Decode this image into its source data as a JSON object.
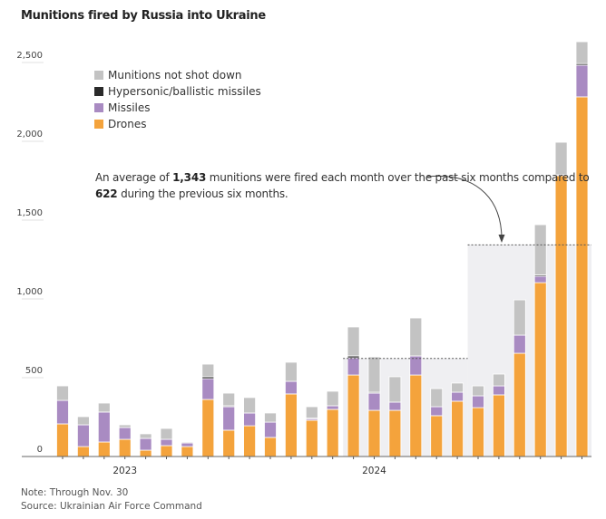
{
  "chart_data": {
    "type": "bar",
    "stacked": true,
    "title": "Munitions fired by Russia into Ukraine",
    "categories": [
      "2022-10",
      "2022-11",
      "2022-12",
      "2023-01",
      "2023-02",
      "2023-03",
      "2023-04",
      "2023-05",
      "2023-06",
      "2023-07",
      "2023-08",
      "2023-09",
      "2023-10",
      "2023-11",
      "2023-12",
      "2024-01",
      "2024-02",
      "2024-03",
      "2024-04",
      "2024-05",
      "2024-06",
      "2024-07",
      "2024-08",
      "2024-09",
      "2024-10",
      "2024-11"
    ],
    "x_tick_labels": [
      {
        "label": "2023",
        "category": "2023-01"
      },
      {
        "label": "2024",
        "category": "2024-01"
      }
    ],
    "ylim": [
      0,
      2600
    ],
    "y_ticks": [
      {
        "value": 0,
        "label": "0"
      },
      {
        "value": 500,
        "label": "500"
      },
      {
        "value": 1000,
        "label": "1,000"
      },
      {
        "value": 1500,
        "label": "1,500"
      },
      {
        "value": 2000,
        "label": "2,000"
      },
      {
        "value": 2500,
        "label": "2,500"
      }
    ],
    "grid": false,
    "legend_placement": "top-left",
    "series": [
      {
        "name": "Drones",
        "color": "#f4a33c",
        "values": [
          207,
          63,
          92,
          109,
          40,
          69,
          63,
          362,
          167,
          195,
          121,
          397,
          230,
          299,
          517,
          293,
          293,
          517,
          259,
          351,
          310,
          391,
          655,
          1103,
          1782,
          2282
        ]
      },
      {
        "name": "Missiles",
        "color": "#a98bc2",
        "values": [
          149,
          138,
          190,
          75,
          75,
          40,
          23,
          132,
          149,
          81,
          97,
          80,
          11,
          23,
          109,
          109,
          52,
          121,
          57,
          57,
          75,
          57,
          115,
          41,
          5,
          201
        ]
      },
      {
        "name": "Hypersonic/ballistic missiles",
        "color": "#2a2a2a",
        "values": [
          0,
          0,
          0,
          0,
          0,
          0,
          0,
          12,
          6,
          0,
          0,
          0,
          4,
          0,
          12,
          6,
          0,
          0,
          0,
          0,
          0,
          0,
          0,
          8,
          0,
          10
        ]
      },
      {
        "name": "Munitions not shot down",
        "color": "#c3c3c3",
        "values": [
          92,
          52,
          57,
          17,
          29,
          69,
          6,
          80,
          80,
          98,
          58,
          121,
          71,
          92,
          184,
          224,
          161,
          241,
          115,
          58,
          63,
          75,
          224,
          319,
          207,
          139
        ]
      }
    ],
    "legend_order": [
      "Munitions not shot down",
      "Hypersonic/ballistic missiles",
      "Missiles",
      "Drones"
    ],
    "averages": [
      {
        "from": "2023-12",
        "to": "2024-05",
        "value": 622
      },
      {
        "from": "2024-06",
        "to": "2024-11",
        "value": 1343
      }
    ],
    "annotation": {
      "p1": "An average of ",
      "b1": "1,343",
      "p2": " munitions were fired each month over the past six months compared to ",
      "b2": "622",
      "p3": " during the previous six months."
    },
    "shade_color": "#efeff2"
  },
  "footer": {
    "note": "Note: Through Nov. 30",
    "source": "Source: Ukrainian Air Force Command"
  }
}
